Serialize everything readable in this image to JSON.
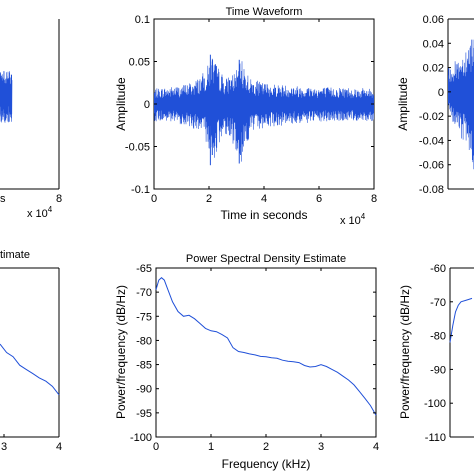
{
  "figure": {
    "background": "#ffffff",
    "plot_color": "#2050d8",
    "axis_color": "#000000"
  },
  "chart_data": [
    {
      "type": "line",
      "title": "",
      "xlabel": "",
      "ylabel": "",
      "visible_x_ticks": [
        "s",
        "8"
      ],
      "visible_x_values": [
        null,
        8
      ],
      "x_exponent": "x 10",
      "x_exponent_power": "4",
      "xlim": [
        0,
        8
      ],
      "note": ""
    },
    {
      "type": "line",
      "title": "Time Waveform",
      "xlabel": "Time in seconds",
      "ylabel": "Amplitude",
      "xlim": [
        0,
        8
      ],
      "ylim": [
        -0.1,
        0.1
      ],
      "x_ticks": [
        "0",
        "2",
        "4",
        "6",
        "8"
      ],
      "y_ticks": [
        "-0.1",
        "-0.05",
        "0",
        "0.05",
        "0.1"
      ],
      "x_exponent": "x 10",
      "x_exponent_power": "4",
      "grid": false,
      "envelope": {
        "x": [
          0,
          0.5,
          1,
          1.5,
          1.9,
          2.0,
          2.1,
          2.3,
          2.6,
          3.0,
          3.2,
          3.5,
          4,
          5,
          6,
          7,
          8
        ],
        "upper": [
          0.018,
          0.02,
          0.022,
          0.028,
          0.04,
          0.05,
          0.06,
          0.045,
          0.03,
          0.04,
          0.052,
          0.03,
          0.025,
          0.022,
          0.02,
          0.02,
          0.018
        ],
        "lower": [
          -0.02,
          -0.022,
          -0.024,
          -0.03,
          -0.045,
          -0.06,
          -0.072,
          -0.055,
          -0.035,
          -0.055,
          -0.07,
          -0.035,
          -0.028,
          -0.024,
          -0.022,
          -0.02,
          -0.02
        ]
      }
    },
    {
      "type": "line",
      "title": "",
      "xlabel": "",
      "ylabel": "Amplitude",
      "ylim": [
        -0.08,
        0.06
      ],
      "y_ticks": [
        "0.06",
        "0.04",
        "0.02",
        "0",
        "-0.02",
        "-0.04",
        "-0.06",
        "-0.08"
      ],
      "y_values": [
        0.06,
        0.04,
        0.02,
        0,
        -0.02,
        -0.04,
        -0.06,
        -0.08
      ]
    },
    {
      "type": "line",
      "title": "timate",
      "xlabel": "",
      "ylabel": "",
      "x_ticks": [
        "3",
        "4"
      ],
      "x_values": [
        3,
        4
      ],
      "xlim": [
        2.2,
        4
      ]
    },
    {
      "type": "line",
      "title": "Power Spectral Density Estimate",
      "xlabel": "Frequency (kHz)",
      "ylabel": "Power/frequency (dB/Hz)",
      "xlim": [
        0,
        4
      ],
      "ylim": [
        -100,
        -65
      ],
      "x_ticks": [
        "0",
        "1",
        "2",
        "3",
        "4"
      ],
      "y_ticks": [
        "-65",
        "-70",
        "-75",
        "-80",
        "-85",
        "-90",
        "-95",
        "-100"
      ],
      "grid": false,
      "x": [
        0,
        0.05,
        0.1,
        0.15,
        0.2,
        0.3,
        0.4,
        0.5,
        0.6,
        0.7,
        0.8,
        0.9,
        1.0,
        1.1,
        1.2,
        1.3,
        1.4,
        1.5,
        1.6,
        1.7,
        1.8,
        1.9,
        2.0,
        2.1,
        2.2,
        2.3,
        2.4,
        2.5,
        2.6,
        2.7,
        2.8,
        2.9,
        3.0,
        3.1,
        3.2,
        3.3,
        3.4,
        3.5,
        3.6,
        3.7,
        3.8,
        3.9,
        4.0
      ],
      "y": [
        -69.5,
        -67.5,
        -67,
        -67.5,
        -69,
        -72,
        -74,
        -75,
        -74.8,
        -75.5,
        -76.5,
        -77.5,
        -78,
        -78.2,
        -78.8,
        -79.5,
        -81.5,
        -82.3,
        -82.5,
        -82.8,
        -83,
        -83.3,
        -83.4,
        -83.6,
        -83.7,
        -84.1,
        -84.3,
        -84.4,
        -84.6,
        -85.2,
        -85.5,
        -85.4,
        -85.0,
        -85.4,
        -86,
        -86.6,
        -87.4,
        -88.2,
        -89.2,
        -90.6,
        -92,
        -93.5,
        -95.5
      ]
    },
    {
      "type": "line",
      "title": "",
      "xlabel": "",
      "ylabel": "Power/frequency (dB/Hz)",
      "ylim": [
        -110,
        -60
      ],
      "y_ticks": [
        "-60",
        "-70",
        "-80",
        "-90",
        "-100",
        "-110"
      ],
      "y_values": [
        -60,
        -70,
        -80,
        -90,
        -100,
        -110
      ]
    }
  ]
}
